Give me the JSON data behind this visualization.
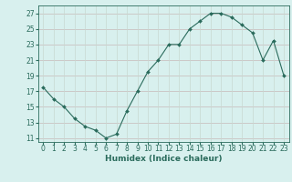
{
  "x": [
    0,
    1,
    2,
    3,
    4,
    5,
    6,
    7,
    8,
    9,
    10,
    11,
    12,
    13,
    14,
    15,
    16,
    17,
    18,
    19,
    20,
    21,
    22,
    23
  ],
  "y": [
    17.5,
    16.0,
    15.0,
    13.5,
    12.5,
    12.0,
    11.0,
    11.5,
    14.5,
    17.0,
    19.5,
    21.0,
    23.0,
    23.0,
    25.0,
    26.0,
    27.0,
    27.0,
    26.5,
    25.5,
    24.5,
    21.0,
    23.5,
    19.0
  ],
  "ylim": [
    10.5,
    28
  ],
  "yticks": [
    11,
    13,
    15,
    17,
    19,
    21,
    23,
    25,
    27
  ],
  "xticks": [
    0,
    1,
    2,
    3,
    4,
    5,
    6,
    7,
    8,
    9,
    10,
    11,
    12,
    13,
    14,
    15,
    16,
    17,
    18,
    19,
    20,
    21,
    22,
    23
  ],
  "xlabel": "Humidex (Indice chaleur)",
  "line_color": "#2a6b5c",
  "marker": "D",
  "marker_size": 2.0,
  "bg_color": "#d8f0ee",
  "grid_color_h": "#c8b8b8",
  "grid_color_v": "#c8d8d0",
  "tick_fontsize": 5.5,
  "xlabel_fontsize": 6.5,
  "xlabel_color": "#2a6b5c"
}
